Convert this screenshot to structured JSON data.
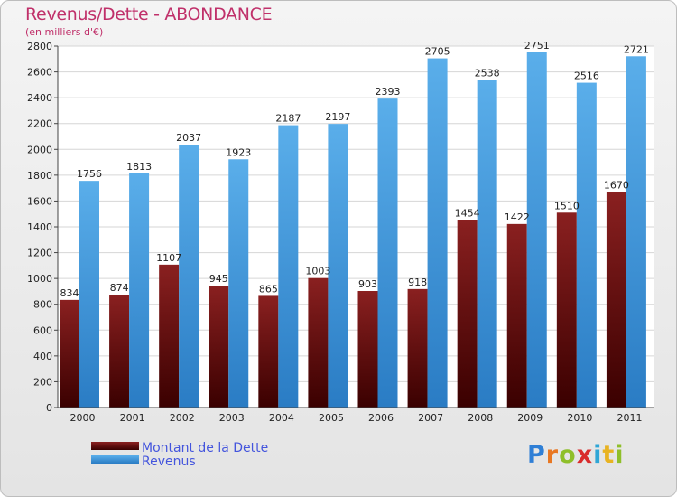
{
  "chart_data": {
    "type": "bar",
    "title": "Revenus/Dette - ABONDANCE",
    "subtitle": "(en milliers d'€)",
    "categories": [
      "2000",
      "2001",
      "2002",
      "2003",
      "2004",
      "2005",
      "2006",
      "2007",
      "2008",
      "2009",
      "2010",
      "2011"
    ],
    "series": [
      {
        "name": "Montant de la Dette",
        "values": [
          834,
          874,
          1107,
          945,
          865,
          1003,
          903,
          918,
          1454,
          1422,
          1510,
          1670
        ],
        "labels": [
          "834",
          "874",
          "1107",
          "945",
          "865",
          "1003",
          "903",
          "918",
          "1454",
          "1422",
          "1510",
          "1670"
        ],
        "color": "#7a1616"
      },
      {
        "name": "Revenus",
        "values": [
          1756,
          1813,
          2037,
          1923,
          2187,
          2197,
          2393,
          2705,
          2538,
          2751,
          2516,
          2721
        ],
        "labels": [
          "1756",
          "1813",
          "2037",
          "1923",
          "2187",
          "2197",
          "2393",
          "2705",
          "2538",
          "2751",
          "2516",
          "2721"
        ],
        "color": "#3d9ae0"
      }
    ],
    "ylim": [
      0,
      2800
    ],
    "yticks": [
      0,
      200,
      400,
      600,
      800,
      1000,
      1200,
      1400,
      1600,
      1800,
      2000,
      2200,
      2400,
      2600,
      2800
    ],
    "grid": true,
    "legend": "bottom-left"
  },
  "brand": {
    "letters": [
      "P",
      "r",
      "o",
      "x",
      "i",
      "t",
      "i"
    ],
    "colors": [
      "#2f7fd6",
      "#e87722",
      "#8fbf2a",
      "#d92b2b",
      "#2fa6d6",
      "#e8b322",
      "#8fbf2a"
    ]
  }
}
